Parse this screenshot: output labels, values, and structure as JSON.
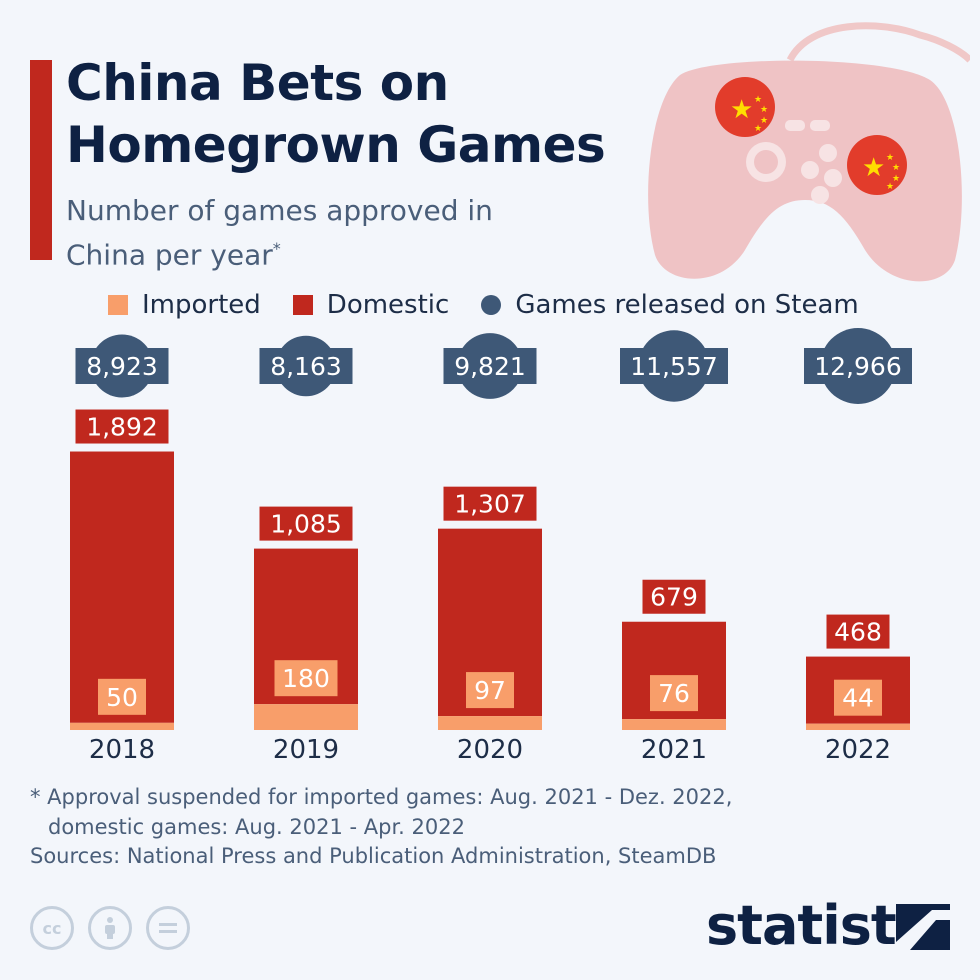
{
  "title": "China Bets on Homegrown Games",
  "subtitle": "Number of games approved in China per year",
  "subtitle_marker": "*",
  "legend": [
    {
      "label": "Imported",
      "color": "#f89e6a",
      "shape": "square"
    },
    {
      "label": "Domestic",
      "color": "#c0281e",
      "shape": "square"
    },
    {
      "label": "Games released on Steam",
      "color": "#3e5877",
      "shape": "circle"
    }
  ],
  "chart_data": {
    "type": "bar",
    "stacked": true,
    "categories": [
      "2018",
      "2019",
      "2020",
      "2021",
      "2022"
    ],
    "series": [
      {
        "name": "Imported",
        "values": [
          50,
          180,
          97,
          76,
          44
        ],
        "labels": [
          "50",
          "180",
          "97",
          "76",
          "44"
        ]
      },
      {
        "name": "Domestic",
        "values": [
          1892,
          1085,
          1307,
          679,
          468
        ],
        "labels": [
          "1,892",
          "1,085",
          "1,307",
          "679",
          "468"
        ]
      },
      {
        "name": "Games released on Steam",
        "values": [
          8923,
          8163,
          9821,
          11557,
          12966
        ],
        "labels": [
          "8,923",
          "8,163",
          "9,821",
          "11,557",
          "12,966"
        ],
        "display": "circle"
      }
    ],
    "grid": false,
    "legend_position": "top"
  },
  "footnote": {
    "line1": "* Approval suspended for imported games: Aug. 2021 - Dez. 2022,",
    "line2": "domestic games: Aug. 2021 - Apr. 2022"
  },
  "sources": "Sources: National Press and Publication Administration, SteamDB",
  "license_icons": [
    "cc-icon",
    "by-icon",
    "nd-icon"
  ],
  "brand": "statista",
  "colors": {
    "imported": "#f89e6a",
    "domestic": "#c0281e",
    "steam": "#3e5877",
    "title": "#0e2143",
    "accent": "#c0281e"
  }
}
